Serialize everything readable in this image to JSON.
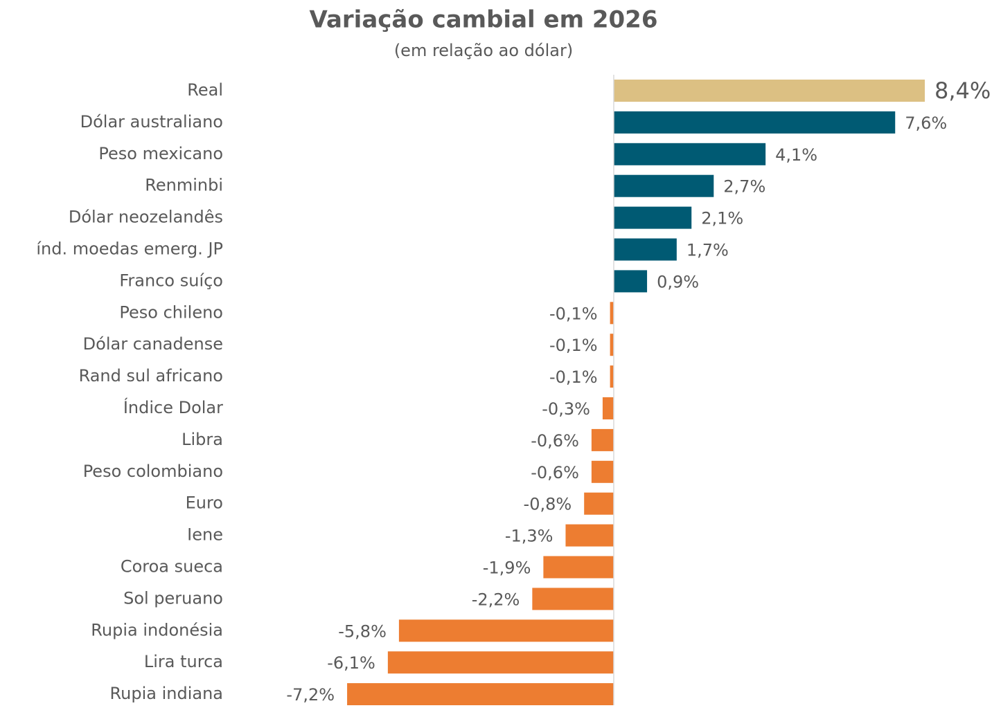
{
  "chart_data": {
    "type": "hbar",
    "title": "Variação cambial em 2026",
    "subtitle": "(em relação ao dólar)",
    "categories": [
      "Real",
      "Dólar australiano",
      "Peso mexicano",
      "Renminbi",
      "Dólar neozelandês",
      "índ. moedas emerg. JP",
      "Franco suíço",
      "Peso chileno",
      "Dólar canadense",
      "Rand sul africano",
      "Índice Dolar",
      "Libra ",
      "Peso colombiano",
      "Euro",
      "Iene",
      "Coroa sueca",
      "Sol peruano",
      "Rupia indonésia",
      "Lira turca",
      "Rupia indiana"
    ],
    "values": [
      8.4,
      7.6,
      4.1,
      2.7,
      2.1,
      1.7,
      0.9,
      -0.1,
      -0.1,
      -0.1,
      -0.3,
      -0.6,
      -0.6,
      -0.8,
      -1.3,
      -1.9,
      -2.2,
      -5.8,
      -6.1,
      -7.2
    ],
    "value_labels": [
      "8,4%",
      "7,6%",
      "4,1%",
      "2,7%",
      "2,1%",
      "1,7%",
      "0,9%",
      "-0,1%",
      "-0,1%",
      "-0,1%",
      "-0,3%",
      "-0,6%",
      "-0,6%",
      "-0,8%",
      "-1,3%",
      "-1,9%",
      "-2,2%",
      "-5,8%",
      "-6,1%",
      "-7,2%"
    ],
    "colors": [
      "#dcc083",
      "#005a73",
      "#005a73",
      "#005a73",
      "#005a73",
      "#005a73",
      "#005a73",
      "#ed7d31",
      "#ed7d31",
      "#ed7d31",
      "#ed7d31",
      "#ed7d31",
      "#ed7d31",
      "#ed7d31",
      "#ed7d31",
      "#ed7d31",
      "#ed7d31",
      "#ed7d31",
      "#ed7d31",
      "#ed7d31"
    ],
    "xlim": [
      -10.4,
      8.4
    ]
  }
}
